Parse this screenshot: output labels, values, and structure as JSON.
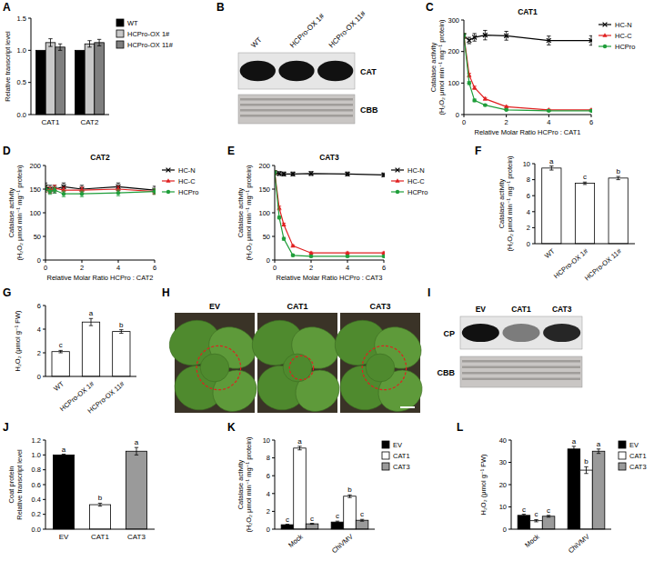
{
  "chart_data": [
    {
      "panel": "A",
      "type": "bar",
      "categories": [
        "CAT1",
        "CAT2"
      ],
      "y_label": [
        "Relative transcript level"
      ],
      "ylim": [
        0,
        1.5
      ],
      "yticks": [
        {
          "value": 0,
          "label": "0.0"
        },
        {
          "value": 0.5,
          "label": "0.5"
        },
        {
          "value": 1,
          "label": "1.0"
        },
        {
          "value": 1.5,
          "label": "1.5"
        }
      ],
      "legend": "right",
      "series": [
        {
          "name": "WT",
          "color": "#000000",
          "values": [
            1.0,
            1.0
          ]
        },
        {
          "name": "HCPro-OX 1#",
          "color": "#c8c8c8",
          "values": [
            1.12,
            1.1
          ],
          "errors": [
            0.06,
            0.05
          ]
        },
        {
          "name": "HCPro-OX 11#",
          "color": "#7f7f7f",
          "values": [
            1.05,
            1.12
          ],
          "errors": [
            0.05,
            0.05
          ]
        }
      ]
    },
    {
      "panel": "C",
      "type": "line",
      "title": "CAT1",
      "x_label": "Relative Molar Ratio HCPro : CAT1",
      "y_label": [
        "Catalase activity",
        "(H₂O₂ μmol min⁻¹ mg⁻¹ protein)"
      ],
      "x": [
        0,
        0.25,
        0.5,
        1,
        2,
        4,
        6
      ],
      "xlim": [
        0,
        6
      ],
      "xticks": [
        0,
        2,
        4,
        6
      ],
      "ylim": [
        0,
        300
      ],
      "yticks": [
        0,
        100,
        200,
        300
      ],
      "legend": "right",
      "series": [
        {
          "name": "HC-N",
          "color": "#000000",
          "marker": "cross",
          "values": [
            250,
            235,
            245,
            252,
            250,
            235,
            235
          ],
          "errors": [
            8,
            10,
            12,
            15,
            14,
            14,
            15
          ]
        },
        {
          "name": "HC-C",
          "color": "#e02020",
          "marker": "triangle",
          "values": [
            250,
            125,
            85,
            50,
            25,
            15,
            15
          ],
          "errors": [
            8,
            6,
            5,
            4,
            3,
            2,
            2
          ]
        },
        {
          "name": "HCPro",
          "color": "#1f9e3a",
          "marker": "circle",
          "values": [
            250,
            100,
            45,
            30,
            15,
            12,
            12
          ],
          "errors": [
            8,
            5,
            4,
            3,
            2,
            2,
            2
          ]
        }
      ]
    },
    {
      "panel": "D",
      "type": "line",
      "title": "CAT2",
      "x_label": "Relative Molar Ratio HCPro : CAT2",
      "y_label": [
        "Catalase activity",
        "(H₂O₂ μmol min⁻¹ mg⁻¹ protein)"
      ],
      "x": [
        0,
        0.25,
        0.5,
        1,
        2,
        4,
        6
      ],
      "xlim": [
        0,
        6
      ],
      "xticks": [
        0,
        2,
        4,
        6
      ],
      "ylim": [
        0,
        200
      ],
      "yticks": [
        0,
        50,
        100,
        150,
        200
      ],
      "legend": "right",
      "series": [
        {
          "name": "HC-N",
          "color": "#000000",
          "marker": "cross",
          "values": [
            155,
            150,
            150,
            155,
            150,
            155,
            148
          ],
          "errors": [
            8,
            8,
            8,
            8,
            8,
            8,
            8
          ]
        },
        {
          "name": "HC-C",
          "color": "#e02020",
          "marker": "triangle",
          "values": [
            150,
            148,
            152,
            148,
            148,
            150,
            145
          ],
          "errors": [
            6,
            6,
            6,
            6,
            6,
            6,
            6
          ]
        },
        {
          "name": "HCPro",
          "color": "#1f9e3a",
          "marker": "circle",
          "values": [
            150,
            145,
            148,
            140,
            140,
            142,
            145
          ],
          "errors": [
            6,
            6,
            6,
            6,
            6,
            6,
            6
          ]
        }
      ]
    },
    {
      "panel": "E",
      "type": "line",
      "title": "CAT3",
      "x_label": "Relative Molar Ratio HCPro : CAT3",
      "y_label": [
        "Catalase activity",
        "(H₂O₂ μmol min⁻¹ mg⁻¹ protein)"
      ],
      "x": [
        0,
        0.25,
        0.5,
        1,
        2,
        4,
        6
      ],
      "xlim": [
        0,
        6
      ],
      "xticks": [
        0,
        2,
        4,
        6
      ],
      "ylim": [
        0,
        200
      ],
      "yticks": [
        0,
        50,
        100,
        150,
        200
      ],
      "legend": "right",
      "series": [
        {
          "name": "HC-N",
          "color": "#000000",
          "marker": "cross",
          "values": [
            185,
            183,
            182,
            182,
            183,
            182,
            180
          ],
          "errors": [
            4,
            4,
            4,
            4,
            4,
            4,
            4
          ]
        },
        {
          "name": "HC-C",
          "color": "#e02020",
          "marker": "triangle",
          "values": [
            185,
            110,
            75,
            30,
            15,
            15,
            15
          ],
          "errors": [
            4,
            4,
            3,
            2,
            2,
            2,
            2
          ]
        },
        {
          "name": "HCPro",
          "color": "#1f9e3a",
          "marker": "circle",
          "values": [
            185,
            90,
            45,
            10,
            8,
            8,
            8
          ],
          "errors": [
            4,
            3,
            3,
            2,
            2,
            2,
            2
          ]
        }
      ]
    },
    {
      "panel": "F",
      "type": "bar",
      "categories": [
        "WT",
        "HCPro-OX 1#",
        "HCPro-OX 11#"
      ],
      "y_label": [
        "Catalase activity",
        "(H₂O₂ μmol min⁻¹ mg⁻¹ protein)"
      ],
      "ylim": [
        0,
        10
      ],
      "yticks": [
        0,
        2,
        4,
        6,
        8,
        10
      ],
      "color": "#ffffff",
      "values": [
        9.45,
        7.55,
        8.2
      ],
      "errors": [
        0.25,
        0.15,
        0.2
      ],
      "letters": [
        "a",
        "c",
        "b"
      ]
    },
    {
      "panel": "G",
      "type": "bar",
      "categories": [
        "WT",
        "HCPro-OX 1#",
        "HCPro-OX 11#"
      ],
      "y_label": [
        "H₂O₂ (μmol g⁻¹ FW)"
      ],
      "ylim": [
        0,
        6
      ],
      "yticks": [
        0,
        2,
        4,
        6
      ],
      "color": "#ffffff",
      "values": [
        2.1,
        4.6,
        3.8
      ],
      "errors": [
        0.1,
        0.3,
        0.15
      ],
      "letters": [
        "c",
        "a",
        "b"
      ]
    },
    {
      "panel": "J",
      "type": "bar",
      "categories": [
        "EV",
        "CAT1",
        "CAT3"
      ],
      "y_label": [
        "Coat protein",
        "Relative transcript level"
      ],
      "ylim": [
        0,
        1.2
      ],
      "yticks": [
        {
          "value": 0,
          "label": "0.0"
        },
        {
          "value": 0.2,
          "label": "0.2"
        },
        {
          "value": 0.4,
          "label": "0.4"
        },
        {
          "value": 0.6,
          "label": "0.6"
        },
        {
          "value": 0.8,
          "label": "0.8"
        },
        {
          "value": 1.0,
          "label": "1.0"
        },
        {
          "value": 1.2,
          "label": "1.2"
        }
      ],
      "colors": [
        "#000000",
        "#ffffff",
        "#9a9a9a"
      ],
      "values": [
        1.0,
        0.33,
        1.05
      ],
      "errors": [
        0.01,
        0.02,
        0.05
      ],
      "letters": [
        "a",
        "b",
        "a"
      ]
    },
    {
      "panel": "K",
      "type": "bar",
      "categories": [
        "Mock",
        "ChiVMV"
      ],
      "y_label": [
        "Catalase activity",
        "(H₂O₂ μmol min⁻¹ mg⁻¹ protein)"
      ],
      "ylim": [
        0,
        10
      ],
      "yticks": [
        0,
        2,
        4,
        6,
        8,
        10
      ],
      "legend": "right",
      "series": [
        {
          "name": "EV",
          "color": "#000000",
          "values": [
            0.5,
            0.8
          ],
          "errors": [
            0.05,
            0.1
          ],
          "letters": [
            "c",
            "c"
          ]
        },
        {
          "name": "CAT1",
          "color": "#ffffff",
          "values": [
            9.1,
            3.7
          ],
          "errors": [
            0.2,
            0.15
          ],
          "letters": [
            "a",
            "b"
          ]
        },
        {
          "name": "CAT3",
          "color": "#9a9a9a",
          "values": [
            0.6,
            1.0
          ],
          "errors": [
            0.05,
            0.1
          ],
          "letters": [
            "c",
            "c"
          ]
        }
      ]
    },
    {
      "panel": "L",
      "type": "bar",
      "categories": [
        "Mock",
        "ChiVMV"
      ],
      "y_label": [
        "H₂O₂ (μmol g⁻¹ FW)"
      ],
      "ylim": [
        0,
        40
      ],
      "yticks": [
        0,
        10,
        20,
        30,
        40
      ],
      "legend": "right",
      "series": [
        {
          "name": "EV",
          "color": "#000000",
          "values": [
            6.2,
            36
          ],
          "errors": [
            0.5,
            1.2
          ],
          "letters": [
            "c",
            "a"
          ]
        },
        {
          "name": "CAT1",
          "color": "#ffffff",
          "values": [
            3.8,
            26.5
          ],
          "errors": [
            0.5,
            1.5
          ],
          "letters": [
            "c",
            "b"
          ]
        },
        {
          "name": "CAT3",
          "color": "#9a9a9a",
          "values": [
            5.8,
            35
          ],
          "errors": [
            0.4,
            1.0
          ],
          "letters": [
            "c",
            "a"
          ]
        }
      ]
    }
  ],
  "images": [
    {
      "panel": "B",
      "type": "blot",
      "lanes": [
        "WT",
        "HCPro-OX 1#",
        "HCPro-OX 11#"
      ],
      "rows": [
        "CAT",
        "CBB"
      ]
    },
    {
      "panel": "H",
      "type": "photo",
      "labels": [
        "EV",
        "CAT1",
        "CAT3"
      ]
    },
    {
      "panel": "I",
      "type": "blot",
      "lanes": [
        "EV",
        "CAT1",
        "CAT3"
      ],
      "rows": [
        "CP",
        "CBB"
      ]
    }
  ]
}
